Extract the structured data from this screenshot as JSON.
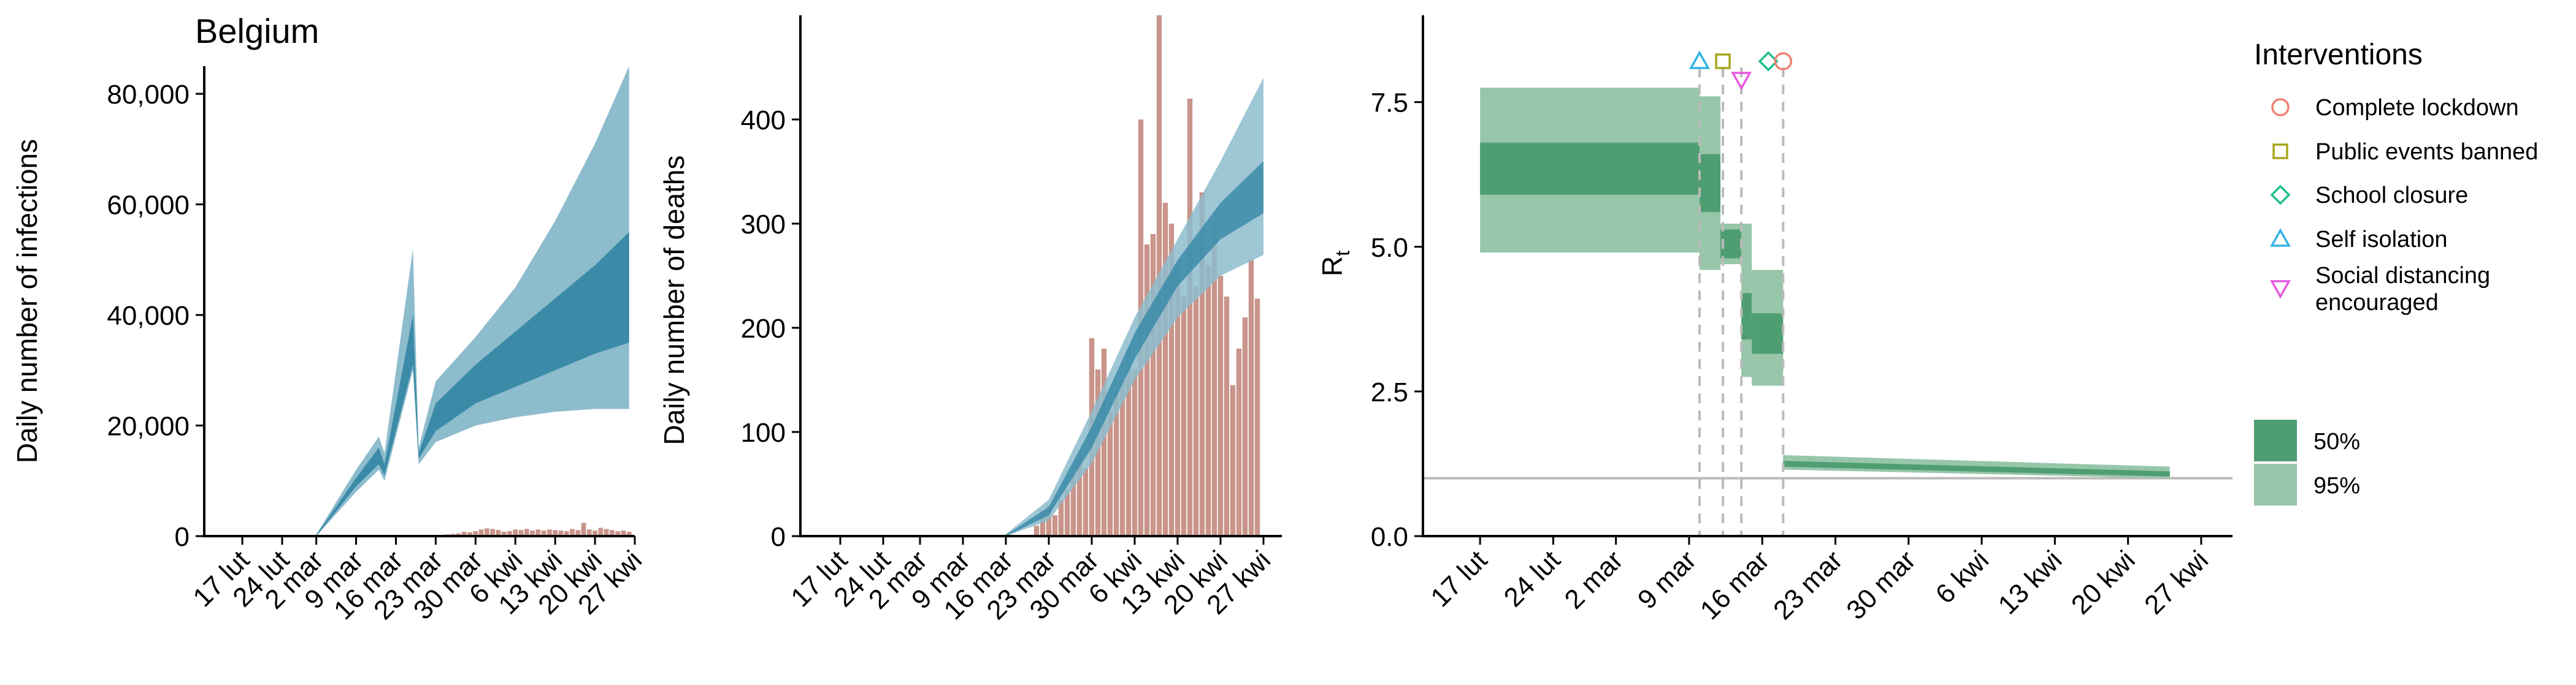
{
  "title": "Belgium",
  "x_dates": [
    "17 lut",
    "24 lut",
    "2 mar",
    "9 mar",
    "16 mar",
    "23 mar",
    "30 mar",
    "6 kwi",
    "13 kwi",
    "20 kwi",
    "27 kwi"
  ],
  "colors": {
    "blue_95": "#8dbccd",
    "blue_50": "#3b8ba8",
    "bar": "#c9948a",
    "green_95": "#97c6aa",
    "green_50": "#4f9e72",
    "guide": "#bbbbbb",
    "marker_lockdown": "#f08070",
    "marker_events": "#a7a61e",
    "marker_school": "#1fbf8f",
    "marker_isolation": "#33b3e6",
    "marker_distancing": "#e85ae0"
  },
  "chart_data": [
    {
      "type": "area",
      "title": "Belgium",
      "ylabel": "Daily number of infections",
      "ylim": [
        0,
        85000
      ],
      "yticks": [
        0,
        20000,
        40000,
        60000,
        80000
      ],
      "ytick_labels": [
        "0",
        "20,000",
        "40,000",
        "60,000",
        "80,000"
      ],
      "x": [
        "17 lut",
        "24 lut",
        "2 mar",
        "9 mar",
        "16 mar",
        "23 mar",
        "30 mar",
        "6 kwi",
        "13 kwi",
        "20 kwi",
        "27 kwi"
      ],
      "band_95": {
        "dates": [
          "2 mar",
          "9 mar",
          "13 mar",
          "14 mar",
          "19 mar",
          "20 mar",
          "23 mar",
          "30 mar",
          "6 kwi",
          "13 kwi",
          "20 kwi",
          "26 kwi"
        ],
        "lower": [
          0,
          8000,
          12000,
          10000,
          30000,
          13000,
          17000,
          20000,
          21500,
          22500,
          23000,
          23000
        ],
        "upper": [
          300,
          12000,
          18000,
          15000,
          52000,
          16000,
          28000,
          36000,
          45000,
          57000,
          71000,
          85000
        ]
      },
      "band_50": {
        "dates": [
          "2 mar",
          "9 mar",
          "13 mar",
          "14 mar",
          "19 mar",
          "20 mar",
          "23 mar",
          "30 mar",
          "6 kwi",
          "13 kwi",
          "20 kwi",
          "26 kwi"
        ],
        "lower": [
          0,
          9000,
          13000,
          11000,
          31000,
          14000,
          19000,
          24000,
          27000,
          30000,
          33000,
          35000
        ],
        "upper": [
          200,
          10500,
          16000,
          13000,
          40000,
          15000,
          24000,
          31000,
          37000,
          43000,
          49000,
          55000
        ]
      },
      "bars": {
        "dates": [
          "25 mar",
          "26 mar",
          "27 mar",
          "28 mar",
          "29 mar",
          "30 mar",
          "31 mar",
          "1 kwi",
          "2 kwi",
          "3 kwi",
          "4 kwi",
          "5 kwi",
          "6 kwi",
          "7 kwi",
          "8 kwi",
          "9 kwi",
          "10 kwi",
          "11 kwi",
          "12 kwi",
          "13 kwi",
          "14 kwi",
          "15 kwi",
          "16 kwi",
          "17 kwi",
          "18 kwi",
          "19 kwi",
          "20 kwi",
          "21 kwi",
          "22 kwi",
          "23 kwi",
          "24 kwi",
          "25 kwi",
          "26 kwi"
        ],
        "values": [
          300,
          400,
          500,
          800,
          700,
          900,
          1200,
          1400,
          1300,
          1100,
          800,
          900,
          1200,
          1100,
          1300,
          1000,
          1200,
          1000,
          1200,
          1100,
          1000,
          900,
          1300,
          1100,
          2400,
          1200,
          1000,
          1500,
          1300,
          1100,
          900,
          1000,
          800
        ]
      }
    },
    {
      "type": "area",
      "ylabel": "Daily number of deaths",
      "ylim": [
        0,
        500
      ],
      "yticks": [
        0,
        100,
        200,
        300,
        400
      ],
      "ytick_labels": [
        "0",
        "100",
        "200",
        "300",
        "400"
      ],
      "x": [
        "17 lut",
        "24 lut",
        "2 mar",
        "9 mar",
        "16 mar",
        "23 mar",
        "30 mar",
        "6 kwi",
        "13 kwi",
        "20 kwi",
        "27 kwi"
      ],
      "band_95": {
        "dates": [
          "16 mar",
          "23 mar",
          "30 mar",
          "6 kwi",
          "13 kwi",
          "20 kwi",
          "27 kwi"
        ],
        "lower": [
          0,
          15,
          70,
          150,
          210,
          250,
          270
        ],
        "upper": [
          2,
          35,
          120,
          210,
          285,
          360,
          440
        ]
      },
      "band_50": {
        "dates": [
          "16 mar",
          "23 mar",
          "30 mar",
          "6 kwi",
          "13 kwi",
          "20 kwi",
          "27 kwi"
        ],
        "lower": [
          0,
          20,
          85,
          170,
          240,
          285,
          310
        ],
        "upper": [
          1,
          28,
          105,
          195,
          265,
          320,
          360
        ]
      },
      "bars": {
        "dates": [
          "21 mar",
          "22 mar",
          "23 mar",
          "24 mar",
          "25 mar",
          "26 mar",
          "27 mar",
          "28 mar",
          "29 mar",
          "30 mar",
          "31 mar",
          "1 kwi",
          "2 kwi",
          "3 kwi",
          "4 kwi",
          "5 kwi",
          "6 kwi",
          "7 kwi",
          "8 kwi",
          "9 kwi",
          "10 kwi",
          "11 kwi",
          "12 kwi",
          "13 kwi",
          "14 kwi",
          "15 kwi",
          "16 kwi",
          "17 kwi",
          "18 kwi",
          "19 kwi",
          "20 kwi",
          "21 kwi",
          "22 kwi",
          "23 kwi",
          "24 kwi",
          "25 kwi",
          "26 kwi"
        ],
        "values": [
          10,
          25,
          30,
          20,
          35,
          45,
          60,
          75,
          65,
          190,
          160,
          180,
          120,
          140,
          150,
          180,
          160,
          400,
          280,
          290,
          500,
          320,
          300,
          260,
          230,
          420,
          240,
          330,
          260,
          300,
          250,
          230,
          145,
          180,
          210,
          265,
          228
        ]
      }
    },
    {
      "type": "area",
      "ylabel": "R",
      "ylabel_subscript": "t",
      "ylim": [
        0,
        9
      ],
      "yticks": [
        0,
        2.5,
        5,
        7.5
      ],
      "ytick_labels": [
        "0.0",
        "2.5",
        "5.0",
        "7.5"
      ],
      "reference_line": 1,
      "x": [
        "17 lut",
        "24 lut",
        "2 mar",
        "9 mar",
        "16 mar",
        "23 mar",
        "30 mar",
        "6 kwi",
        "13 kwi",
        "20 kwi",
        "27 kwi"
      ],
      "steps": [
        {
          "start": "17 lut",
          "end": "10 mar",
          "lower_95": 4.9,
          "upper_95": 7.75,
          "lower_50": 5.9,
          "upper_50": 6.8
        },
        {
          "start": "10 mar",
          "end": "12 mar",
          "lower_95": 4.6,
          "upper_95": 7.6,
          "lower_50": 5.6,
          "upper_50": 6.6
        },
        {
          "start": "12 mar",
          "end": "14 mar",
          "lower_95": 4.7,
          "upper_95": 5.4,
          "lower_50": 4.8,
          "upper_50": 5.3
        },
        {
          "start": "14 mar",
          "end": "15 mar",
          "lower_95": 2.75,
          "upper_95": 5.4,
          "lower_50": 3.4,
          "upper_50": 4.2
        },
        {
          "start": "15 mar",
          "end": "18 mar",
          "lower_95": 2.6,
          "upper_95": 4.6,
          "lower_50": 3.15,
          "upper_50": 3.85
        }
      ],
      "tail": {
        "start": "18 mar",
        "end": "24 kwi",
        "lower_95": [
          1.15,
          1.0
        ],
        "upper_95": [
          1.4,
          1.2
        ],
        "lower_50": [
          1.2,
          1.03
        ],
        "upper_50": [
          1.3,
          1.12
        ]
      },
      "interventions": [
        {
          "label": "Self isolation",
          "date": "10 mar",
          "marker": "triangle-up",
          "color_key": "marker_isolation"
        },
        {
          "label": "Public events banned",
          "date": "12 mar",
          "marker": "square",
          "color_key": "marker_events"
        },
        {
          "label": "School closure",
          "date": "14 mar",
          "marker": "diamond",
          "color_key": "marker_school"
        },
        {
          "label": "Social distancing\n encouraged",
          "date": "14 mar",
          "marker": "triangle-down",
          "color_key": "marker_distancing"
        },
        {
          "label": "Complete lockdown",
          "date": "18 mar",
          "marker": "circle",
          "color_key": "marker_lockdown"
        }
      ]
    }
  ],
  "legend": {
    "title": "Interventions",
    "items": [
      {
        "label": "Complete lockdown",
        "marker": "circle",
        "color_key": "marker_lockdown"
      },
      {
        "label": "Public events banned",
        "marker": "square",
        "color_key": "marker_events"
      },
      {
        "label": "School closure",
        "marker": "diamond",
        "color_key": "marker_school"
      },
      {
        "label": "Self isolation",
        "marker": "triangle-up",
        "color_key": "marker_isolation"
      },
      {
        "label": "Social distancing\n encouraged",
        "marker": "triangle-down",
        "color_key": "marker_distancing"
      }
    ],
    "intervals": [
      {
        "label": "50%",
        "color_key": "green_50"
      },
      {
        "label": "95%",
        "color_key": "green_95"
      }
    ]
  }
}
